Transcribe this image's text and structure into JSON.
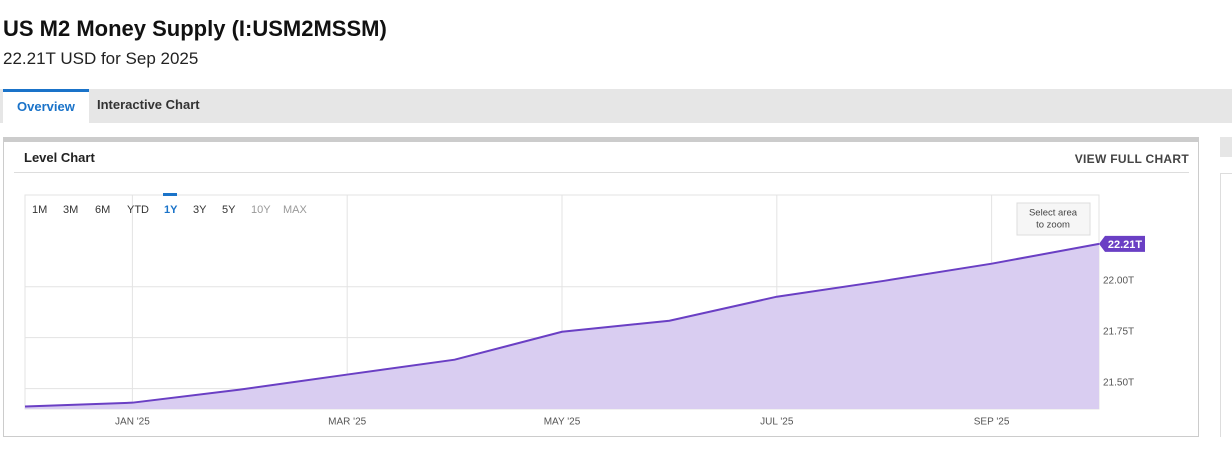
{
  "header": {
    "title": "US M2 Money Supply (I:USM2MSSM)",
    "subtitle": "22.21T USD for Sep 2025"
  },
  "tabs": [
    "Overview",
    "Interactive Chart"
  ],
  "active_tab_index": 0,
  "panel": {
    "title": "Level Chart",
    "action": "VIEW FULL CHART"
  },
  "range_buttons": [
    "1M",
    "3M",
    "6M",
    "YTD",
    "1Y",
    "3Y",
    "5Y",
    "10Y",
    "MAX"
  ],
  "active_range_index": 4,
  "disabled_range_indices": [
    7,
    8
  ],
  "zoom_hint": [
    "Select area",
    "to zoom"
  ],
  "chart_data": {
    "type": "area",
    "categories": [
      null,
      "JAN '25",
      null,
      "MAR '25",
      null,
      "MAY '25",
      null,
      "JUL '25",
      null,
      "SEP '25",
      null
    ],
    "values": [
      21.412,
      21.431,
      21.495,
      21.569,
      21.642,
      21.779,
      21.833,
      21.951,
      22.029,
      22.113,
      22.21
    ],
    "value_labels": [
      null,
      null,
      null,
      null,
      null,
      null,
      null,
      null,
      null,
      null,
      "22.21T"
    ],
    "color": "#6a3fc4",
    "fill": "#d9cdf1",
    "ylim": [
      21.4,
      22.45
    ],
    "yticks": [
      {
        "value": 21.5,
        "label": "21.50T"
      },
      {
        "value": 21.75,
        "label": "21.75T"
      },
      {
        "value": 22.0,
        "label": "22.00T"
      }
    ],
    "grid": true
  }
}
